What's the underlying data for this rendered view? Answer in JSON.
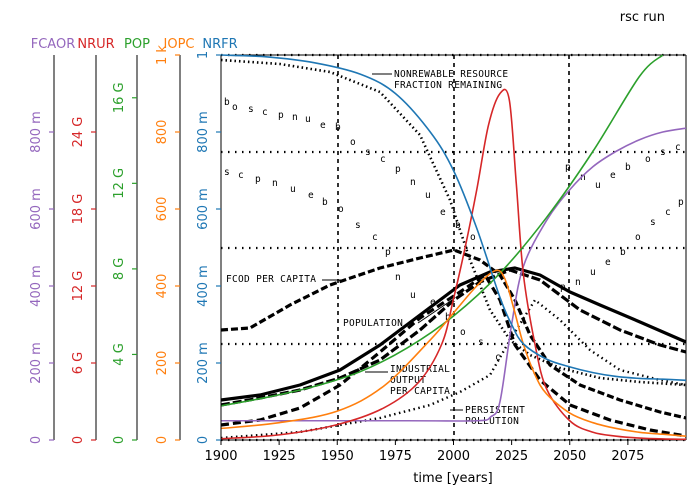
{
  "title": "rsc run",
  "chart_data": {
    "type": "line",
    "title": "rsc run",
    "xlabel": "time [years]",
    "xlim": [
      1900,
      2100
    ],
    "x_ticks": [
      "1900",
      "1925",
      "1950",
      "1975",
      "2000",
      "2025",
      "2050",
      "2075"
    ],
    "x_tick_values": [
      1900,
      1925,
      1950,
      1975,
      2000,
      2025,
      2050,
      2075
    ],
    "background_annotations": [
      "NONREWABLE RESOURCE",
      "FRACTION REMAINING",
      "FCOD PER CAPITA",
      "POPULATION",
      "INDUSTRIAL",
      "OUTPUT",
      "PER CAPITA",
      "PERSISTENT",
      "POLLUTION"
    ],
    "axes": [
      {
        "name": "FCAOR",
        "color": "#9467bd",
        "lim": [
          0,
          1
        ],
        "ticks": [
          "0",
          "200 m",
          "400 m",
          "600 m",
          "800 m"
        ],
        "tick_values": [
          0,
          0.2,
          0.4,
          0.6,
          0.8
        ]
      },
      {
        "name": "NRUR",
        "color": "#d62728",
        "lim": [
          0,
          30000000000
        ],
        "ticks": [
          "0",
          "6 G",
          "12 G",
          "18 G",
          "24 G"
        ],
        "tick_values": [
          0,
          6000000000,
          12000000000,
          18000000000,
          24000000000
        ]
      },
      {
        "name": "POP",
        "color": "#2ca02c",
        "lim": [
          0,
          18000000000
        ],
        "ticks": [
          "0",
          "4 G",
          "8 G",
          "12 G",
          "16 G"
        ],
        "tick_values": [
          0,
          4000000000,
          8000000000,
          12000000000,
          16000000000
        ]
      },
      {
        "name": "IOPC",
        "color": "#ff7f0e",
        "lim": [
          0,
          1000
        ],
        "ticks": [
          "0",
          "200",
          "400",
          "600",
          "800",
          "1 k"
        ],
        "tick_values": [
          0,
          200,
          400,
          600,
          800,
          1000
        ]
      },
      {
        "name": "NRFR",
        "color": "#1f77b4",
        "lim": [
          0,
          1
        ],
        "ticks": [
          "0",
          "200 m",
          "400 m",
          "600 m",
          "800 m",
          "1"
        ],
        "tick_values": [
          0,
          0.2,
          0.4,
          0.6,
          0.8,
          1
        ]
      }
    ],
    "series": [
      {
        "name": "FCAOR",
        "color": "#9467bd",
        "x": [
          1900,
          1980,
          2010,
          2016,
          2020,
          2025,
          2030,
          2040,
          2050,
          2060,
          2070,
          2080,
          2090,
          2100
        ],
        "values": [
          0.05,
          0.05,
          0.05,
          0.06,
          0.1,
          0.3,
          0.45,
          0.57,
          0.65,
          0.71,
          0.75,
          0.78,
          0.8,
          0.81
        ]
      },
      {
        "name": "NRUR",
        "color": "#d62728",
        "x": [
          1900,
          1925,
          1950,
          1970,
          1985,
          1995,
          2000,
          2005,
          2010,
          2015,
          2020,
          2024,
          2027,
          2030,
          2035,
          2040,
          2050,
          2060,
          2070,
          2080,
          2090,
          2100
        ],
        "values": [
          100000000.0,
          400000000.0,
          1200000000.0,
          2500000000.0,
          4500000000.0,
          7500000000.0,
          11000000000.0,
          15000000000.0,
          19500000000.0,
          24500000000.0,
          27000000000.0,
          26500000000.0,
          20000000000.0,
          13000000000.0,
          7500000000.0,
          4000000000.0,
          1500000000.0,
          600000000.0,
          300000000.0,
          150000000.0,
          80000000.0,
          50000000.0
        ]
      },
      {
        "name": "POP",
        "color": "#2ca02c",
        "x": [
          1900,
          1920,
          1940,
          1960,
          1980,
          2000,
          2020,
          2040,
          2060,
          2080,
          2090
        ],
        "values": [
          1600000000.0,
          2000000000.0,
          2500000000.0,
          3200000000.0,
          4300000000.0,
          5800000000.0,
          7800000000.0,
          10400000000.0,
          13500000000.0,
          17000000000.0,
          18000000000.0
        ]
      },
      {
        "name": "IOPC",
        "color": "#ff7f0e",
        "x": [
          1900,
          1925,
          1950,
          1970,
          1990,
          2000,
          2010,
          2018,
          2022,
          2026,
          2030,
          2035,
          2040,
          2050,
          2060,
          2070,
          2080,
          2090,
          2100
        ],
        "values": [
          30,
          45,
          75,
          140,
          260,
          330,
          400,
          440,
          420,
          340,
          250,
          170,
          120,
          70,
          45,
          30,
          20,
          15,
          10
        ]
      },
      {
        "name": "NRFR",
        "color": "#1f77b4",
        "x": [
          1900,
          1920,
          1940,
          1960,
          1975,
          1990,
          2000,
          2010,
          2020,
          2025,
          2030,
          2040,
          2050,
          2060,
          2070,
          2080,
          2090,
          2100
        ],
        "values": [
          1.0,
          0.995,
          0.98,
          0.95,
          0.9,
          0.8,
          0.7,
          0.55,
          0.37,
          0.3,
          0.25,
          0.21,
          0.19,
          0.175,
          0.165,
          0.16,
          0.158,
          0.155
        ]
      }
    ]
  }
}
